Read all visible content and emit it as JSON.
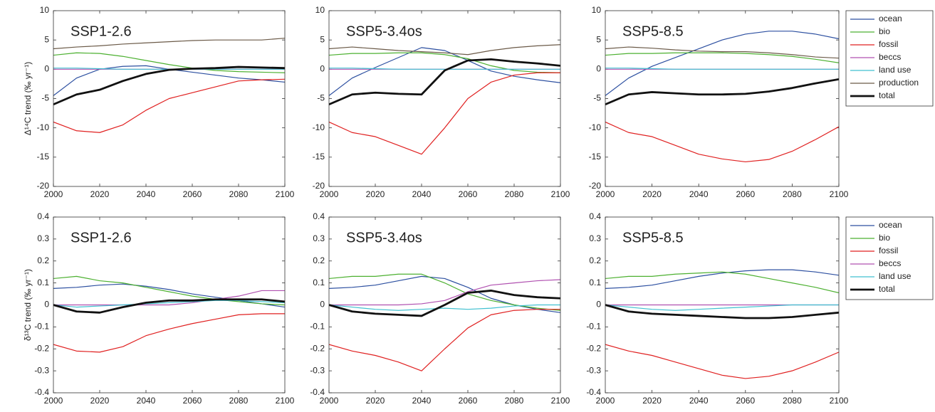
{
  "chart_data": [
    {
      "type": "line",
      "title": "SSP1-2.6",
      "ylabel": "Δ¹⁴C trend (‰ yr⁻¹)",
      "x": [
        2000,
        2010,
        2020,
        2030,
        2040,
        2050,
        2060,
        2070,
        2080,
        2090,
        2100
      ],
      "xlim": [
        2000,
        2100
      ],
      "xticks": [
        2000,
        2020,
        2040,
        2060,
        2080,
        2100
      ],
      "ylim": [
        -20,
        10
      ],
      "yticks": [
        -20,
        -15,
        -10,
        -5,
        0,
        5,
        10
      ],
      "series": [
        {
          "name": "ocean",
          "color": "#2c4fa0",
          "values": [
            -4.5,
            -1.5,
            0,
            0.5,
            0.6,
            0,
            -0.5,
            -1,
            -1.5,
            -1.8,
            -2.2
          ]
        },
        {
          "name": "bio",
          "color": "#4cb030",
          "values": [
            2.4,
            2.8,
            2.7,
            2.2,
            1.5,
            0.8,
            0.2,
            -0.2,
            -0.4,
            -0.5,
            -0.6
          ]
        },
        {
          "name": "fossil",
          "color": "#e02020",
          "values": [
            -9,
            -10.5,
            -10.8,
            -9.5,
            -7,
            -5,
            -4,
            -3,
            -2,
            -1.8,
            -1.7
          ]
        },
        {
          "name": "beccs",
          "color": "#b050b0",
          "values": [
            0,
            0,
            0,
            0,
            0,
            0,
            0,
            0,
            0,
            0,
            0
          ]
        },
        {
          "name": "land use",
          "color": "#40c0d0",
          "values": [
            0.2,
            0.2,
            0.1,
            0,
            0,
            0,
            0,
            0,
            0,
            0,
            0
          ]
        },
        {
          "name": "production",
          "color": "#6b5a48",
          "values": [
            3.5,
            3.8,
            4,
            4.3,
            4.5,
            4.7,
            4.9,
            5,
            5,
            5,
            5.3
          ]
        },
        {
          "name": "total",
          "color": "#111111",
          "linewidth": 2.8,
          "values": [
            -6,
            -4.3,
            -3.5,
            -2,
            -0.8,
            -0.1,
            0.1,
            0.2,
            0.4,
            0.3,
            0.2
          ]
        }
      ]
    },
    {
      "type": "line",
      "title": "SSP5-3.4os",
      "x": [
        2000,
        2010,
        2020,
        2030,
        2040,
        2050,
        2060,
        2070,
        2080,
        2090,
        2100
      ],
      "xlim": [
        2000,
        2100
      ],
      "xticks": [
        2000,
        2020,
        2040,
        2060,
        2080,
        2100
      ],
      "ylim": [
        -20,
        10
      ],
      "yticks": [
        -20,
        -15,
        -10,
        -5,
        0,
        5,
        10
      ],
      "series": [
        {
          "name": "ocean",
          "color": "#2c4fa0",
          "values": [
            -4.5,
            -1.5,
            0.3,
            2,
            3.7,
            3.2,
            1.5,
            -0.3,
            -1.2,
            -1.8,
            -2.3
          ]
        },
        {
          "name": "bio",
          "color": "#4cb030",
          "values": [
            2.4,
            2.7,
            2.7,
            2.8,
            2.8,
            2.5,
            1.8,
            0.6,
            -0.2,
            -0.5,
            -0.6
          ]
        },
        {
          "name": "fossil",
          "color": "#e02020",
          "values": [
            -9,
            -10.8,
            -11.5,
            -13,
            -14.5,
            -10,
            -5,
            -2.2,
            -1,
            -0.6,
            -0.6
          ]
        },
        {
          "name": "beccs",
          "color": "#b050b0",
          "values": [
            0,
            0,
            0,
            0,
            0,
            0,
            0,
            0,
            0,
            0,
            0
          ]
        },
        {
          "name": "land use",
          "color": "#40c0d0",
          "values": [
            0.2,
            0.2,
            0.1,
            0,
            0,
            0,
            0,
            0,
            0,
            0,
            0
          ]
        },
        {
          "name": "production",
          "color": "#6b5a48",
          "values": [
            3.5,
            3.8,
            3.5,
            3.2,
            3,
            2.8,
            2.5,
            3.2,
            3.7,
            4,
            4.2
          ]
        },
        {
          "name": "total",
          "color": "#111111",
          "linewidth": 2.8,
          "values": [
            -6,
            -4.3,
            -4,
            -4.2,
            -4.3,
            -0.2,
            1.5,
            1.7,
            1.3,
            1,
            0.6
          ]
        }
      ]
    },
    {
      "type": "line",
      "title": "SSP5-8.5",
      "legend": "outside right",
      "x": [
        2000,
        2010,
        2020,
        2030,
        2040,
        2050,
        2060,
        2070,
        2080,
        2090,
        2100
      ],
      "xlim": [
        2000,
        2100
      ],
      "xticks": [
        2000,
        2020,
        2040,
        2060,
        2080,
        2100
      ],
      "ylim": [
        -20,
        10
      ],
      "yticks": [
        -20,
        -15,
        -10,
        -5,
        0,
        5,
        10
      ],
      "series": [
        {
          "name": "ocean",
          "color": "#2c4fa0",
          "values": [
            -4.5,
            -1.5,
            0.5,
            2,
            3.5,
            5,
            6,
            6.5,
            6.5,
            6,
            5.2
          ]
        },
        {
          "name": "bio",
          "color": "#4cb030",
          "values": [
            2.4,
            2.7,
            2.7,
            2.8,
            2.8,
            2.8,
            2.7,
            2.5,
            2.2,
            1.7,
            1.1
          ]
        },
        {
          "name": "fossil",
          "color": "#e02020",
          "values": [
            -9,
            -10.8,
            -11.5,
            -13,
            -14.5,
            -15.3,
            -15.8,
            -15.4,
            -14,
            -12,
            -9.8
          ]
        },
        {
          "name": "beccs",
          "color": "#b050b0",
          "values": [
            0,
            0,
            0,
            0,
            0,
            0,
            0,
            0,
            0,
            0,
            0
          ]
        },
        {
          "name": "land use",
          "color": "#40c0d0",
          "values": [
            0.2,
            0.2,
            0.1,
            0,
            0,
            0,
            0,
            0,
            0,
            0,
            0
          ]
        },
        {
          "name": "production",
          "color": "#6b5a48",
          "values": [
            3.5,
            3.8,
            3.6,
            3.3,
            3.1,
            3,
            3,
            2.8,
            2.5,
            2.1,
            1.9
          ]
        },
        {
          "name": "total",
          "color": "#111111",
          "linewidth": 2.8,
          "values": [
            -6,
            -4.3,
            -3.9,
            -4.1,
            -4.3,
            -4.3,
            -4.2,
            -3.8,
            -3.2,
            -2.4,
            -1.7
          ]
        }
      ]
    },
    {
      "type": "line",
      "title": "SSP1-2.6",
      "ylabel": "δ¹³C trend (‰ yr⁻¹)",
      "x": [
        2000,
        2010,
        2020,
        2030,
        2040,
        2050,
        2060,
        2070,
        2080,
        2090,
        2100
      ],
      "xlim": [
        2000,
        2100
      ],
      "xticks": [
        2000,
        2020,
        2040,
        2060,
        2080,
        2100
      ],
      "ylim": [
        -0.4,
        0.4
      ],
      "yticks": [
        -0.4,
        -0.3,
        -0.2,
        -0.1,
        0,
        0.1,
        0.2,
        0.3,
        0.4
      ],
      "series": [
        {
          "name": "ocean",
          "color": "#2c4fa0",
          "values": [
            0.075,
            0.08,
            0.09,
            0.095,
            0.085,
            0.07,
            0.05,
            0.035,
            0.02,
            0.005,
            -0.01
          ]
        },
        {
          "name": "bio",
          "color": "#4cb030",
          "values": [
            0.12,
            0.13,
            0.11,
            0.1,
            0.08,
            0.06,
            0.04,
            0.025,
            0.015,
            0.005,
            0
          ]
        },
        {
          "name": "fossil",
          "color": "#e02020",
          "values": [
            -0.18,
            -0.21,
            -0.215,
            -0.19,
            -0.14,
            -0.11,
            -0.085,
            -0.065,
            -0.045,
            -0.04,
            -0.04
          ]
        },
        {
          "name": "beccs",
          "color": "#b050b0",
          "values": [
            0,
            0,
            0,
            0,
            0,
            0,
            0.01,
            0.025,
            0.04,
            0.065,
            0.065
          ]
        },
        {
          "name": "land use",
          "color": "#40c0d0",
          "values": [
            0,
            -0.01,
            -0.005,
            0,
            0.005,
            0.01,
            0.015,
            0.02,
            0.02,
            0.015,
            0.01
          ]
        },
        {
          "name": "total",
          "color": "#111111",
          "linewidth": 2.8,
          "values": [
            0,
            -0.03,
            -0.035,
            -0.01,
            0.01,
            0.02,
            0.02,
            0.025,
            0.025,
            0.025,
            0.015
          ]
        }
      ]
    },
    {
      "type": "line",
      "title": "SSP5-3.4os",
      "x": [
        2000,
        2010,
        2020,
        2030,
        2040,
        2050,
        2060,
        2070,
        2080,
        2090,
        2100
      ],
      "xlim": [
        2000,
        2100
      ],
      "xticks": [
        2000,
        2020,
        2040,
        2060,
        2080,
        2100
      ],
      "ylim": [
        -0.4,
        0.4
      ],
      "yticks": [
        -0.4,
        -0.3,
        -0.2,
        -0.1,
        0,
        0.1,
        0.2,
        0.3,
        0.4
      ],
      "series": [
        {
          "name": "ocean",
          "color": "#2c4fa0",
          "values": [
            0.075,
            0.08,
            0.09,
            0.11,
            0.13,
            0.12,
            0.08,
            0.03,
            0,
            -0.02,
            -0.035
          ]
        },
        {
          "name": "bio",
          "color": "#4cb030",
          "values": [
            0.12,
            0.13,
            0.13,
            0.14,
            0.14,
            0.1,
            0.05,
            0.02,
            0,
            -0.015,
            -0.025
          ]
        },
        {
          "name": "fossil",
          "color": "#e02020",
          "values": [
            -0.18,
            -0.21,
            -0.23,
            -0.26,
            -0.3,
            -0.2,
            -0.105,
            -0.045,
            -0.025,
            -0.02,
            -0.02
          ]
        },
        {
          "name": "beccs",
          "color": "#b050b0",
          "values": [
            0,
            0,
            0,
            0,
            0.005,
            0.02,
            0.06,
            0.09,
            0.1,
            0.11,
            0.115
          ]
        },
        {
          "name": "land use",
          "color": "#40c0d0",
          "values": [
            0,
            -0.01,
            -0.02,
            -0.025,
            -0.02,
            -0.015,
            -0.02,
            -0.015,
            -0.005,
            0,
            0
          ]
        },
        {
          "name": "total",
          "color": "#111111",
          "linewidth": 2.8,
          "values": [
            0,
            -0.03,
            -0.04,
            -0.045,
            -0.05,
            0,
            0.055,
            0.065,
            0.045,
            0.035,
            0.03
          ]
        }
      ]
    },
    {
      "type": "line",
      "title": "SSP5-8.5",
      "legend": "outside right",
      "x": [
        2000,
        2010,
        2020,
        2030,
        2040,
        2050,
        2060,
        2070,
        2080,
        2090,
        2100
      ],
      "xlim": [
        2000,
        2100
      ],
      "xticks": [
        2000,
        2020,
        2040,
        2060,
        2080,
        2100
      ],
      "ylim": [
        -0.4,
        0.4
      ],
      "yticks": [
        -0.4,
        -0.3,
        -0.2,
        -0.1,
        0,
        0.1,
        0.2,
        0.3,
        0.4
      ],
      "series": [
        {
          "name": "ocean",
          "color": "#2c4fa0",
          "values": [
            0.075,
            0.08,
            0.09,
            0.11,
            0.13,
            0.145,
            0.155,
            0.16,
            0.16,
            0.15,
            0.135
          ]
        },
        {
          "name": "bio",
          "color": "#4cb030",
          "values": [
            0.12,
            0.13,
            0.13,
            0.14,
            0.145,
            0.15,
            0.14,
            0.12,
            0.1,
            0.08,
            0.055
          ]
        },
        {
          "name": "fossil",
          "color": "#e02020",
          "values": [
            -0.18,
            -0.21,
            -0.23,
            -0.26,
            -0.29,
            -0.32,
            -0.335,
            -0.325,
            -0.3,
            -0.26,
            -0.215
          ]
        },
        {
          "name": "beccs",
          "color": "#b050b0",
          "values": [
            0,
            0,
            0,
            0,
            0,
            0,
            0,
            0,
            0,
            0,
            0
          ]
        },
        {
          "name": "land use",
          "color": "#40c0d0",
          "values": [
            0,
            -0.01,
            -0.02,
            -0.025,
            -0.02,
            -0.015,
            -0.01,
            -0.005,
            0,
            0,
            0
          ]
        },
        {
          "name": "total",
          "color": "#111111",
          "linewidth": 2.8,
          "values": [
            0,
            -0.03,
            -0.04,
            -0.045,
            -0.05,
            -0.055,
            -0.06,
            -0.06,
            -0.055,
            -0.045,
            -0.035
          ]
        }
      ]
    }
  ]
}
